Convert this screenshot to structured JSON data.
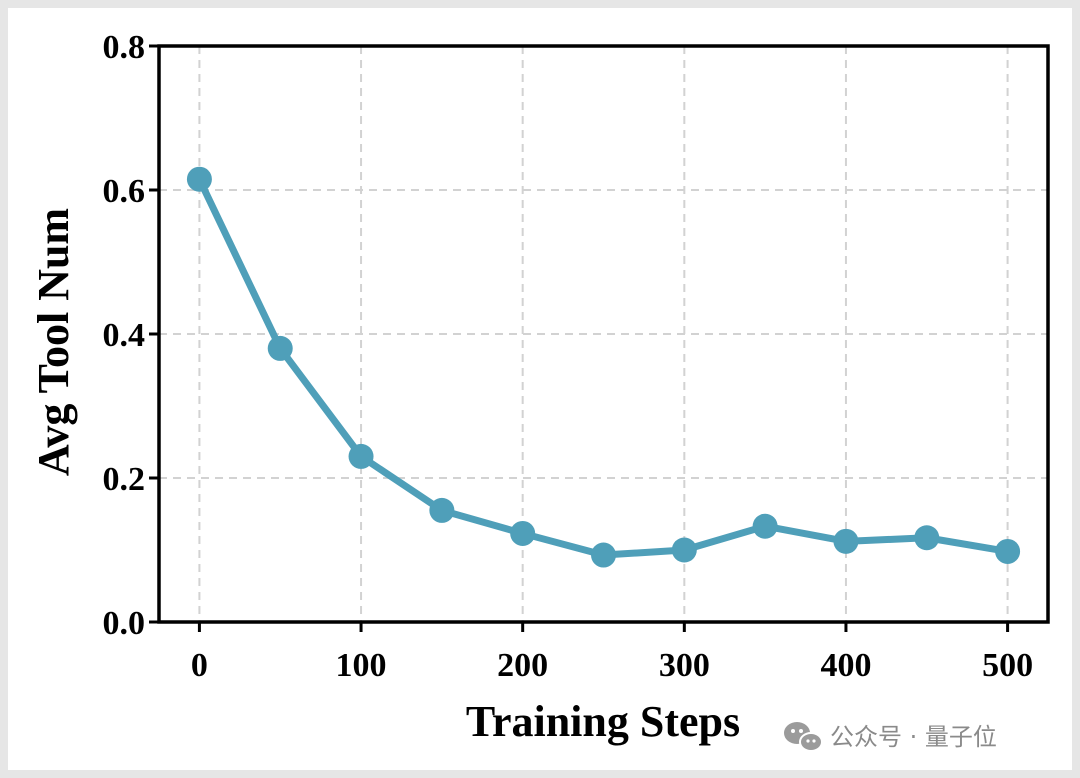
{
  "chart_data": {
    "type": "line",
    "xlabel": "Training Steps",
    "ylabel": "Avg Tool Num",
    "xlim": [
      -25,
      525
    ],
    "ylim": [
      0.0,
      0.8
    ],
    "x_ticks": [
      0,
      100,
      200,
      300,
      400,
      500
    ],
    "x_tick_labels": [
      "0",
      "100",
      "200",
      "300",
      "400",
      "500"
    ],
    "y_ticks": [
      0.0,
      0.2,
      0.4,
      0.6,
      0.8
    ],
    "y_tick_labels": [
      "0.0",
      "0.2",
      "0.4",
      "0.6",
      "0.8"
    ],
    "grid": true,
    "series": [
      {
        "color": "#4f9fb9",
        "x": [
          0,
          50,
          100,
          150,
          200,
          250,
          300,
          350,
          400,
          450,
          500
        ],
        "y": [
          0.615,
          0.38,
          0.23,
          0.155,
          0.123,
          0.093,
          0.1,
          0.133,
          0.112,
          0.117,
          0.098
        ]
      }
    ]
  },
  "watermark": {
    "icon": "wechat-icon",
    "text": "公众号 · 量子位"
  },
  "colors": {
    "line": "#4f9fb9",
    "grid": "#d2d2d2",
    "frame": "#000000"
  }
}
